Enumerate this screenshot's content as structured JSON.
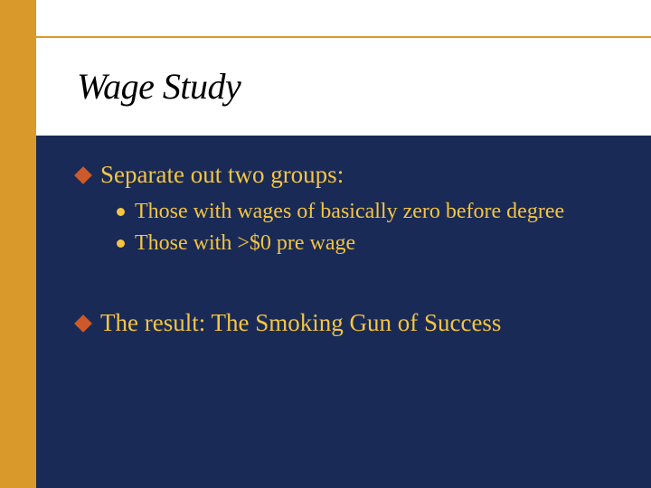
{
  "slide": {
    "title": "Wage Study",
    "background_color": "#1a2a56",
    "accent_bar_color": "#d99a2b",
    "header_background": "#ffffff",
    "title_color": "#000000",
    "title_fontsize": 40,
    "title_italic": true,
    "body_text_color": "#f4c542",
    "main_bullet_color": "#cc5a2a",
    "sub_bullet_color": "#f4c542",
    "main_fontsize": 27,
    "sub_fontsize": 24,
    "bullets": [
      {
        "text": "Separate out two groups:",
        "sub": [
          "Those with wages of basically zero before degree",
          "Those with >$0 pre wage"
        ]
      },
      {
        "text": "The result: The Smoking Gun of Success",
        "sub": []
      }
    ]
  }
}
